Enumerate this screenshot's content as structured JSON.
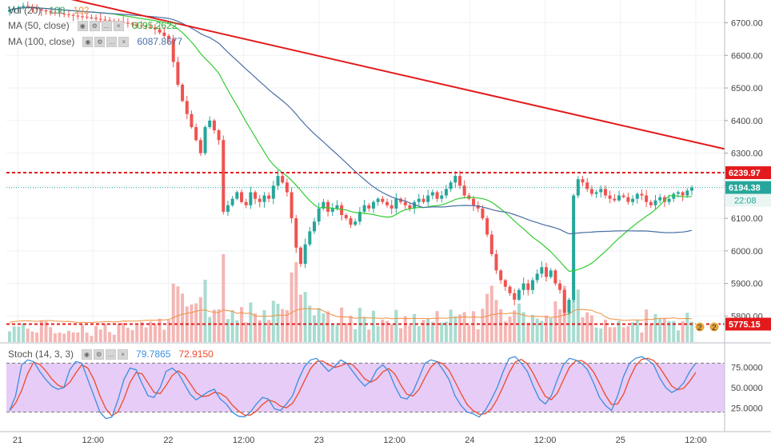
{
  "colors": {
    "up": "#26a69a",
    "down": "#ef5350",
    "vol_up": "#a8dcd0",
    "vol_down": "#f4b6b4",
    "ma50": "#33cc33",
    "ma100": "#4a6fa5",
    "vol_ma": "#f09040",
    "trend": "#e31a1c",
    "stoch_k": "#3b8ede",
    "stoch_d": "#ef4a2a",
    "stoch_band": "#e6ccf7",
    "grid": "#eef1f4"
  },
  "legend": {
    "vol": {
      "name": "Vol (20)",
      "v1": "108",
      "v2": "102"
    },
    "ma50": {
      "name": "MA (50, close)",
      "value": "6095.2622"
    },
    "ma100": {
      "name": "MA (100, close)",
      "value": "6087.8677"
    },
    "stoch": {
      "name": "Stoch (14, 3, 3)",
      "k": "79.7865",
      "d": "72.9150"
    }
  },
  "badges": {
    "resistance": "6239.97",
    "last": "6194.38",
    "countdown": "22:08",
    "support": "5775.15",
    "alert_count_1": "2",
    "alert_count_2": "2"
  },
  "chart_data": [
    {
      "type": "candlestick",
      "price_axis": {
        "min": 5720,
        "max": 6770,
        "ticks": [
          "5800.00",
          "5900.00",
          "6000.00",
          "6100.00",
          "6200.00",
          "6300.00",
          "6400.00",
          "6500.00",
          "6600.00",
          "6700.00"
        ]
      },
      "time_axis": {
        "labels": [
          "21",
          "12:00",
          "22",
          "12:00",
          "23",
          "12:00",
          "24",
          "12:00",
          "25",
          "12:00"
        ]
      },
      "horizontal_levels": [
        {
          "name": "resistance",
          "value": 6239.97,
          "style": "dashed-red"
        },
        {
          "name": "support",
          "value": 5775.15,
          "style": "dashed-red"
        },
        {
          "name": "last-price",
          "value": 6194.38,
          "style": "dotted-green"
        }
      ],
      "trendline": {
        "from": [
          8,
          6790
        ],
        "to": [
          205,
          6160
        ]
      },
      "candles_close": [
        6740,
        6745,
        6748,
        6752,
        6750,
        6745,
        6742,
        6738,
        6735,
        6732,
        6730,
        6728,
        6726,
        6724,
        6722,
        6720,
        6718,
        6716,
        6715,
        6712,
        6710,
        6708,
        6706,
        6705,
        6703,
        6700,
        6698,
        6695,
        6692,
        6690,
        6688,
        6686,
        6680,
        6670,
        6660,
        6650,
        6580,
        6510,
        6460,
        6420,
        6380,
        6340,
        6300,
        6380,
        6400,
        6370,
        6340,
        6120,
        6140,
        6160,
        6180,
        6150,
        6140,
        6180,
        6160,
        6150,
        6170,
        6160,
        6200,
        6230,
        6210,
        6180,
        6100,
        6010,
        5960,
        6020,
        6060,
        6090,
        6130,
        6150,
        6120,
        6130,
        6140,
        6110,
        6100,
        6080,
        6090,
        6120,
        6140,
        6130,
        6150,
        6160,
        6150,
        6140,
        6130,
        6160,
        6150,
        6140,
        6130,
        6150,
        6160,
        6150,
        6170,
        6180,
        6160,
        6170,
        6190,
        6210,
        6230,
        6200,
        6170,
        6160,
        6140,
        6130,
        6100,
        6050,
        5990,
        5940,
        5910,
        5890,
        5870,
        5850,
        5880,
        5900,
        5880,
        5910,
        5930,
        5950,
        5920,
        5940,
        5900,
        5880,
        5810,
        5850,
        6170,
        6220,
        6210,
        6190,
        6175,
        6180,
        6190,
        6170,
        6160,
        6155,
        6170,
        6165,
        6150,
        6160,
        6175,
        6170,
        6150,
        6140,
        6155,
        6165,
        6150,
        6160,
        6175,
        6180,
        6170,
        6185,
        6194
      ]
    },
    {
      "type": "bar",
      "name": "Vol (20)",
      "note": "volume histogram at bottom of price pane, bars colored by candle direction"
    },
    {
      "type": "line",
      "name": "Stoch (14, 3, 3)",
      "y_axis": {
        "min": 0,
        "max": 100,
        "ticks": [
          "25.0000",
          "50.0000",
          "75.0000"
        ],
        "band": [
          20,
          80
        ]
      },
      "k": [
        22,
        40,
        78,
        84,
        82,
        70,
        60,
        52,
        48,
        50,
        72,
        82,
        80,
        60,
        40,
        20,
        12,
        14,
        35,
        60,
        74,
        72,
        55,
        40,
        38,
        50,
        70,
        74,
        68,
        55,
        42,
        35,
        40,
        45,
        48,
        36,
        30,
        20,
        15,
        14,
        20,
        30,
        38,
        36,
        24,
        22,
        30,
        40,
        60,
        76,
        84,
        86,
        78,
        70,
        76,
        84,
        80,
        70,
        60,
        52,
        58,
        72,
        78,
        70,
        52,
        38,
        36,
        45,
        62,
        80,
        84,
        82,
        72,
        60,
        40,
        28,
        20,
        18,
        14,
        22,
        35,
        50,
        70,
        86,
        88,
        80,
        70,
        52,
        36,
        30,
        40,
        60,
        78,
        86,
        84,
        80,
        72,
        56,
        38,
        28,
        22,
        40,
        64,
        80,
        86,
        88,
        84,
        78,
        62,
        50,
        44,
        48,
        56,
        70,
        80
      ]
    }
  ]
}
